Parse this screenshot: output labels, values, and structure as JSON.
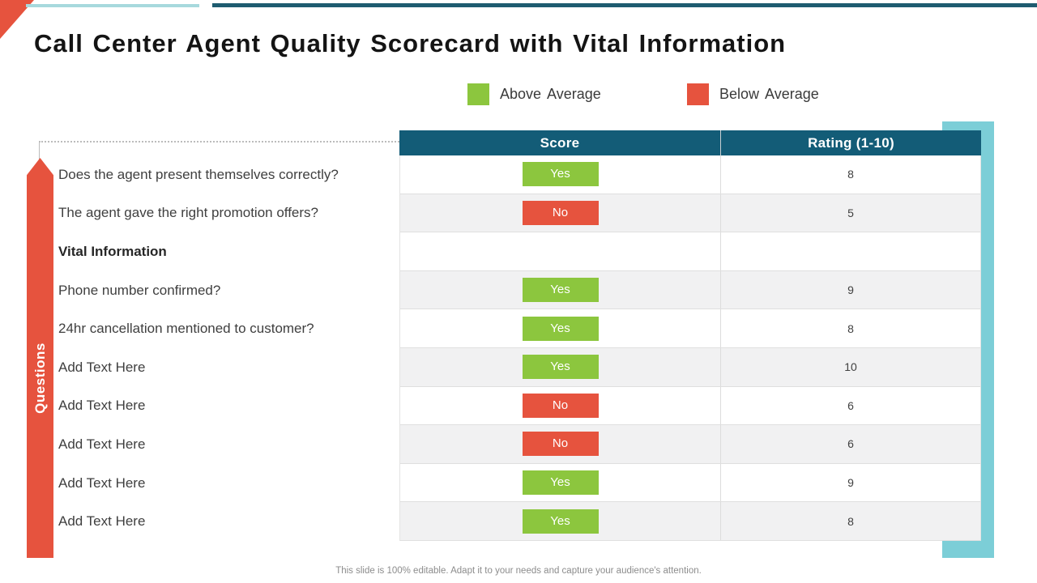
{
  "slide": {
    "title": "Call Center Agent Quality Scorecard with Vital Information",
    "footer": "This slide is 100% editable. Adapt it to your needs and capture your audience's attention."
  },
  "legend": {
    "items": [
      {
        "label": "Above Average",
        "color": "#8CC63E"
      },
      {
        "label": "Below Average",
        "color": "#E6533E"
      }
    ]
  },
  "questions_label": "Questions",
  "table": {
    "headers": {
      "score": "Score",
      "rating": "Rating (1-10)"
    },
    "positive_value": "Yes",
    "rows": [
      {
        "question": "Does the agent present themselves correctly?",
        "score": "Yes",
        "rating": "8",
        "bold": false
      },
      {
        "question": "The agent gave the right promotion offers?",
        "score": "No",
        "rating": "5",
        "bold": false
      },
      {
        "question": "Vital Information",
        "score": "",
        "rating": "",
        "bold": true
      },
      {
        "question": "Phone number confirmed?",
        "score": "Yes",
        "rating": "9",
        "bold": false
      },
      {
        "question": "24hr cancellation mentioned to customer?",
        "score": "Yes",
        "rating": "8",
        "bold": false
      },
      {
        "question": "Add Text Here",
        "score": "Yes",
        "rating": "10",
        "bold": false
      },
      {
        "question": "Add Text Here",
        "score": "No",
        "rating": "6",
        "bold": false
      },
      {
        "question": "Add Text Here",
        "score": "No",
        "rating": "6",
        "bold": false
      },
      {
        "question": "Add Text Here",
        "score": "Yes",
        "rating": "9",
        "bold": false
      },
      {
        "question": "Add Text Here",
        "score": "Yes",
        "rating": "8",
        "bold": false
      }
    ]
  },
  "colors": {
    "accent_red": "#E6533E",
    "accent_green": "#8CC63E",
    "header_teal": "#135C77",
    "bracket_teal": "#7CCED7",
    "light_teal_line": "#A7D9DD",
    "dark_teal_line": "#1E5C70",
    "row_alt": "#F1F1F2",
    "row_border": "#DFDFDF",
    "text_dark": "#3F3F3F",
    "footer_gray": "#8C8C8C"
  }
}
